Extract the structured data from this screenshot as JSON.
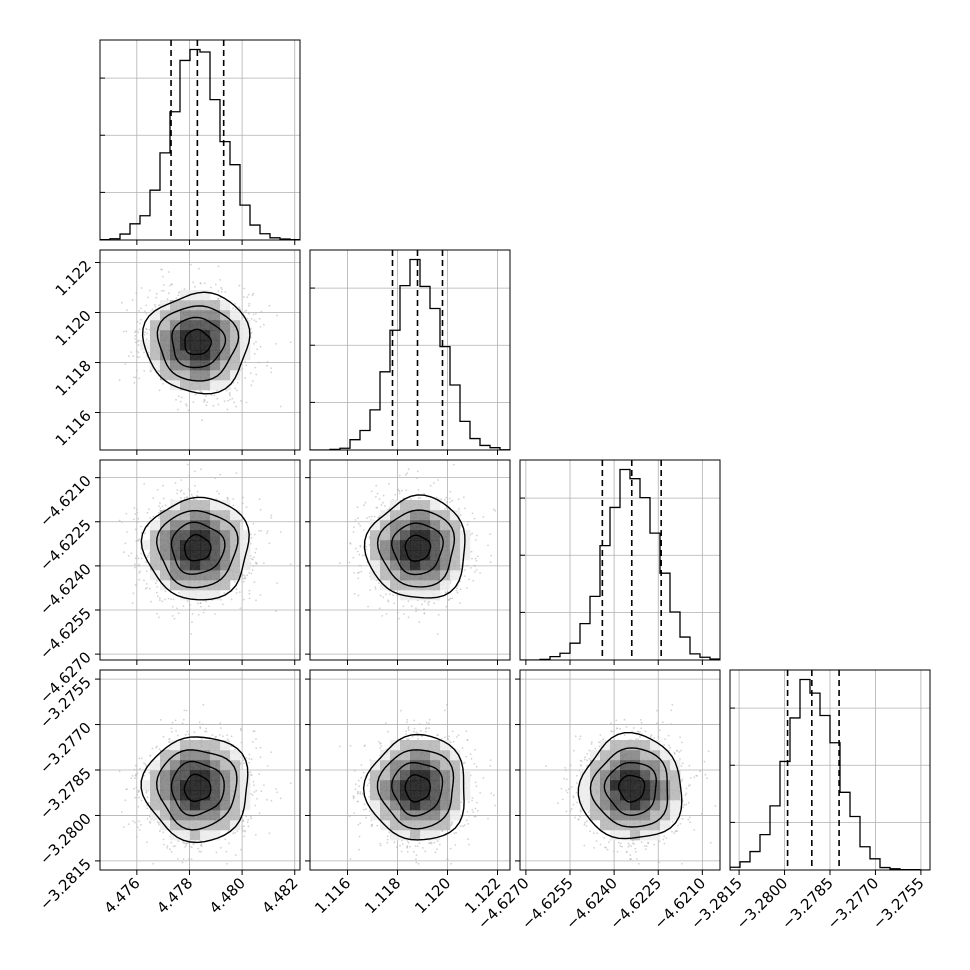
{
  "chart_data": {
    "type": "corner",
    "title": "",
    "parameters": [
      {
        "name": "",
        "range": [
          4.4746,
          4.4822
        ],
        "ticks": [
          4.476,
          4.478,
          4.48,
          4.482
        ],
        "tick_labels": [
          "4.476",
          "4.478",
          "4.480",
          "4.482"
        ],
        "mean": 4.4783,
        "std": 0.001,
        "quantiles": [
          4.4773,
          4.4783,
          4.4793
        ]
      },
      {
        "name": "",
        "range": [
          1.1145,
          1.1225
        ],
        "ticks": [
          1.116,
          1.118,
          1.12,
          1.122
        ],
        "tick_labels": [
          "1.116",
          "1.118",
          "1.120",
          "1.122"
        ],
        "mean": 1.1188,
        "std": 0.001,
        "quantiles": [
          1.1178,
          1.1188,
          1.1198
        ]
      },
      {
        "name": "",
        "range": [
          -4.6272,
          -4.6204
        ],
        "ticks": [
          -4.627,
          -4.6255,
          -4.624,
          -4.6225,
          -4.621
        ],
        "tick_labels": [
          "−4.6270",
          "−4.6255",
          "−4.6240",
          "−4.6225",
          "−4.6210"
        ],
        "mean": -4.6234,
        "std": 0.00087,
        "quantiles": [
          -4.6244,
          -4.6234,
          -4.6224
        ]
      },
      {
        "name": "",
        "range": [
          -3.2818,
          -3.2752
        ],
        "ticks": [
          -3.2815,
          -3.28,
          -3.2785,
          -3.277,
          -3.2755
        ],
        "tick_labels": [
          "−3.2815",
          "−3.2800",
          "−3.2785",
          "−3.2770",
          "−3.2755"
        ],
        "mean": -3.2791,
        "std": 0.00087,
        "quantiles": [
          -3.2799,
          -3.2791,
          -3.2782
        ]
      }
    ],
    "histogram": {
      "bins": 20,
      "style": "step",
      "color": "#000000",
      "quantile_line_style": "dashed"
    },
    "scatter_color": "#b5b5b5",
    "contour_color": "#000000",
    "density_colormap": [
      "#ffffff",
      "#000000"
    ],
    "grid": true,
    "legend": "none"
  }
}
